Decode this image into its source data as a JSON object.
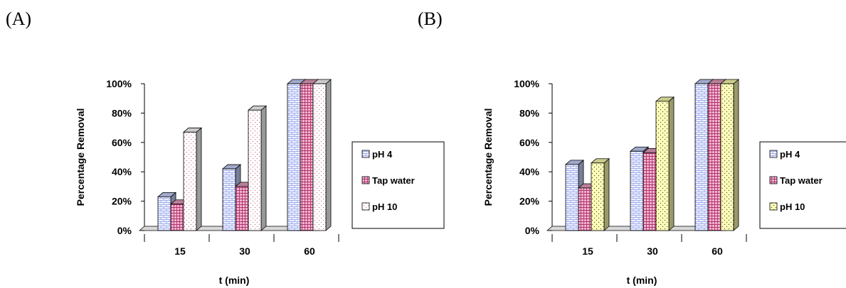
{
  "panels": [
    {
      "label": "(A)"
    },
    {
      "label": "(B)"
    }
  ],
  "chart_data": [
    {
      "type": "bar",
      "panel": "(A)",
      "categories": [
        "15",
        "30",
        "60"
      ],
      "series": [
        {
          "name": "pH 4",
          "values": [
            23,
            42,
            100
          ],
          "fill": "#c9d3ff",
          "pattern": "brick"
        },
        {
          "name": "Tap water",
          "values": [
            18,
            30,
            100
          ],
          "fill": "#e8a0c0",
          "pattern": "grid"
        },
        {
          "name": "pH 10",
          "values": [
            67,
            82,
            100
          ],
          "fill": "#ffffff",
          "pattern": "dots"
        }
      ],
      "yticks": [
        "0%",
        "20%",
        "40%",
        "60%",
        "80%",
        "100%"
      ],
      "ylim": [
        0,
        100
      ],
      "xlabel": "t (min)",
      "ylabel": "Percentage Removal",
      "legend": "right",
      "style": "3d-column"
    },
    {
      "type": "bar",
      "panel": "(B)",
      "categories": [
        "15",
        "30",
        "60"
      ],
      "series": [
        {
          "name": "pH 4",
          "values": [
            45,
            54,
            100
          ],
          "fill": "#c9d3ff",
          "pattern": "brick"
        },
        {
          "name": "Tap water",
          "values": [
            29,
            53,
            100
          ],
          "fill": "#e8a0c0",
          "pattern": "grid"
        },
        {
          "name": "pH 10",
          "values": [
            46,
            88,
            100
          ],
          "fill": "#ffffb0",
          "pattern": "dots"
        }
      ],
      "yticks": [
        "0%",
        "20%",
        "40%",
        "60%",
        "80%",
        "100%"
      ],
      "ylim": [
        0,
        100
      ],
      "xlabel": "t (min)",
      "ylabel": "Percentage Removal",
      "legend": "right",
      "style": "3d-column"
    }
  ]
}
